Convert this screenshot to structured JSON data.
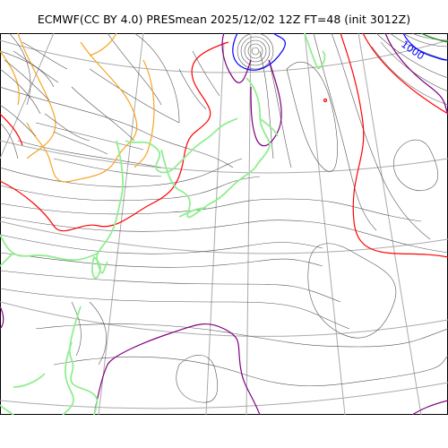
{
  "title": "ECMWF(CC BY 4.0) PRESmean 2025/12/02 12Z FT=48 (init 3012Z)",
  "map": {
    "contour_label": "1000",
    "colors": {
      "isobar": "#555555",
      "graticule": "#aaaaaa",
      "coastline": "#90ee90",
      "contour_orange": "#f5a623",
      "contour_red": "#ff0000",
      "contour_purple": "#800080",
      "contour_blue": "#0000ff",
      "contour_green": "#008000"
    }
  }
}
